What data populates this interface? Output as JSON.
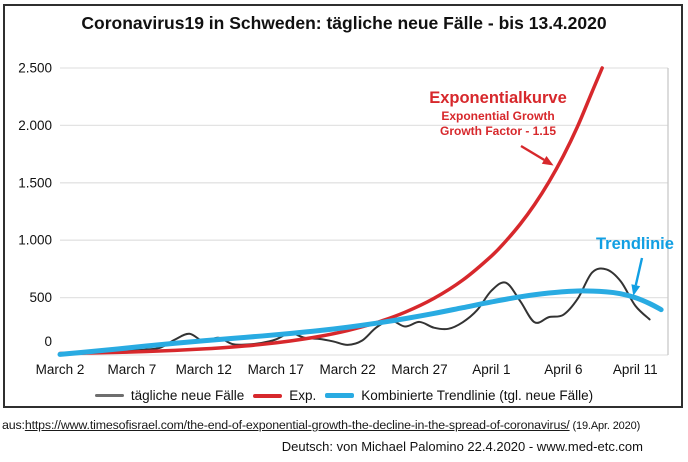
{
  "title": "Coronavirus19 in Schweden: tägliche neue Fälle - bis 13.4.2020",
  "colors": {
    "exp": "#d7282c",
    "trend": "#29abe2",
    "daily": "#333333",
    "daily_legend": "#6e6e6e",
    "grid": "#e3e3e3",
    "plot_border": "#c9c9c9",
    "annotation_red": "#d7282c",
    "annotation_blue": "#119fe3"
  },
  "annotations": {
    "exp_title": "Exponentialkurve",
    "exp_sub1": "Exponential Growth",
    "exp_sub2": "Growth Factor - 1.15",
    "trend_label": "Trendlinie",
    "arrows": [
      {
        "name": "exp-arrow",
        "from": [
          521,
          146
        ],
        "to": [
          551,
          164
        ],
        "color": "annotation_red"
      },
      {
        "name": "trend-arrow",
        "from": [
          642,
          258
        ],
        "to": [
          634,
          293
        ],
        "color": "annotation_blue"
      }
    ]
  },
  "legend": {
    "items": [
      {
        "label": "tägliche neue Fälle",
        "color": "daily_legend"
      },
      {
        "label": "Exp.",
        "color": "exp"
      },
      {
        "label": "Kombinierte Trendlinie (tgl. neue Fälle)",
        "color": "trend"
      }
    ]
  },
  "footer": {
    "source_prefix": "aus:",
    "source_url": "https://www.timesofisrael.com/the-end-of-exponential-growth-the-decline-in-the-spread-of-coronavirus/",
    "source_date": " (19.Apr. 2020)",
    "credit": "Deutsch: von Michael Palomino 22.4.2020 - www.med-etc.com"
  },
  "chart_data": {
    "type": "line",
    "title": "Coronavirus19 in Schweden: tägliche neue Fälle - bis 13.4.2020",
    "xlabel": "",
    "ylabel": "",
    "ylim": [
      0,
      2500
    ],
    "xlim_days": [
      0,
      42
    ],
    "grid": true,
    "legend_position": "bottom",
    "y_ticks": [
      {
        "value": 0,
        "label": "0"
      },
      {
        "value": 500,
        "label": "500"
      },
      {
        "value": 1000,
        "label": "1.000"
      },
      {
        "value": 1500,
        "label": "1.500"
      },
      {
        "value": 2000,
        "label": "2.000"
      },
      {
        "value": 2500,
        "label": "2.500"
      }
    ],
    "x_ticks": [
      {
        "t": 0,
        "label": "March 2"
      },
      {
        "t": 5,
        "label": "March 7"
      },
      {
        "t": 10,
        "label": "March 12"
      },
      {
        "t": 15,
        "label": "March 17"
      },
      {
        "t": 20,
        "label": "March 22"
      },
      {
        "t": 25,
        "label": "March 27"
      },
      {
        "t": 30,
        "label": "April 1"
      },
      {
        "t": 35,
        "label": "April 6"
      },
      {
        "t": 40,
        "label": "April 11"
      }
    ],
    "series": [
      {
        "id": "daily",
        "name": "tägliche neue Fälle",
        "color": "daily",
        "width": 2,
        "points": [
          [
            0,
            3
          ],
          [
            1,
            8
          ],
          [
            2,
            20
          ],
          [
            3,
            42
          ],
          [
            4,
            48
          ],
          [
            5,
            40
          ],
          [
            6,
            48
          ],
          [
            7,
            65
          ],
          [
            8,
            135
          ],
          [
            9,
            185
          ],
          [
            10,
            118
          ],
          [
            11,
            150
          ],
          [
            12,
            95
          ],
          [
            13,
            92
          ],
          [
            14,
            105
          ],
          [
            15,
            135
          ],
          [
            16,
            190
          ],
          [
            17,
            150
          ],
          [
            18,
            140
          ],
          [
            19,
            118
          ],
          [
            20,
            88
          ],
          [
            21,
            125
          ],
          [
            22,
            240
          ],
          [
            23,
            300
          ],
          [
            24,
            248
          ],
          [
            25,
            288
          ],
          [
            26,
            238
          ],
          [
            27,
            228
          ],
          [
            28,
            285
          ],
          [
            29,
            390
          ],
          [
            30,
            560
          ],
          [
            31,
            630
          ],
          [
            32,
            470
          ],
          [
            33,
            285
          ],
          [
            34,
            330
          ],
          [
            35,
            350
          ],
          [
            36,
            490
          ],
          [
            37,
            718
          ],
          [
            38,
            745
          ],
          [
            39,
            640
          ],
          [
            40,
            430
          ],
          [
            41,
            310
          ]
        ]
      },
      {
        "id": "exp",
        "name": "Exp.",
        "color": "exp",
        "width": 3.5,
        "points": [
          [
            0,
            13
          ],
          [
            2,
            17
          ],
          [
            4,
            23
          ],
          [
            6,
            30
          ],
          [
            8,
            40
          ],
          [
            10,
            53
          ],
          [
            12,
            70
          ],
          [
            14,
            92
          ],
          [
            16,
            122
          ],
          [
            18,
            161
          ],
          [
            20,
            213
          ],
          [
            22,
            282
          ],
          [
            24,
            373
          ],
          [
            26,
            493
          ],
          [
            28,
            652
          ],
          [
            30,
            862
          ],
          [
            31,
            992
          ],
          [
            32,
            1140
          ],
          [
            33,
            1311
          ],
          [
            34,
            1508
          ],
          [
            35,
            1734
          ],
          [
            36,
            1994
          ],
          [
            37,
            2293
          ],
          [
            37.7,
            2500
          ]
        ]
      },
      {
        "id": "trend",
        "name": "Kombinierte Trendlinie (tgl. neue Fälle)",
        "color": "trend",
        "width": 5,
        "points": [
          [
            0,
            5
          ],
          [
            2,
            28
          ],
          [
            4,
            52
          ],
          [
            6,
            78
          ],
          [
            8,
            102
          ],
          [
            10,
            124
          ],
          [
            12,
            145
          ],
          [
            14,
            165
          ],
          [
            16,
            187
          ],
          [
            18,
            212
          ],
          [
            20,
            242
          ],
          [
            22,
            277
          ],
          [
            24,
            317
          ],
          [
            26,
            362
          ],
          [
            28,
            412
          ],
          [
            30,
            462
          ],
          [
            32,
            507
          ],
          [
            34,
            540
          ],
          [
            36,
            558
          ],
          [
            38,
            550
          ],
          [
            39,
            533
          ],
          [
            40,
            500
          ],
          [
            41,
            448
          ],
          [
            41.8,
            395
          ]
        ]
      }
    ]
  }
}
